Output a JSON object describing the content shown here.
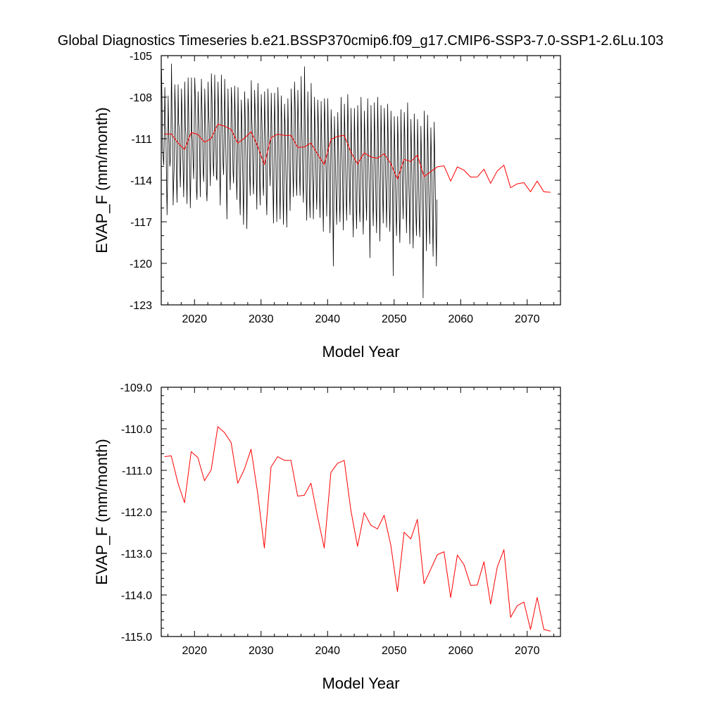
{
  "title": "Global Diagnostics Timeseries b.e21.BSSP370cmip6.f09_g17.CMIP6-SSP3-7.0-SSP1-2.6Lu.103",
  "chart_data": [
    {
      "type": "line",
      "xlabel": "Model Year",
      "ylabel": "EVAP_F (mm/month)",
      "xlim": [
        2015,
        2075
      ],
      "ylim": [
        -123,
        -105
      ],
      "x_ticks": [
        2020,
        2030,
        2040,
        2050,
        2060,
        2070
      ],
      "y_ticks": [
        -105,
        -108,
        -111,
        -114,
        -117,
        -120,
        -123
      ],
      "y_tick_labels": [
        "-105",
        "-108",
        "-111",
        "-114",
        "-117",
        "-120",
        "-123"
      ],
      "series": [
        {
          "color": "#000000",
          "x_start": 2015.04,
          "x_step": 0.0833,
          "values": [
            -106.0,
            -108.5,
            -111.8,
            -112.3,
            -112.9,
            -111.0,
            -107.3,
            -109.9,
            -110.8,
            -113.8,
            -116.5,
            -113.8,
            -107.9,
            -110.2,
            -111.5,
            -113.0,
            -112.6,
            -110.6,
            -105.6,
            -109.3,
            -110.7,
            -115.8,
            -114.1,
            -112.9,
            -107.1,
            -108.8,
            -110.7,
            -113.7,
            -115.6,
            -112.7,
            -107.1,
            -109.9,
            -110.3,
            -113.1,
            -114.5,
            -111.9,
            -107.4,
            -109.0,
            -111.7,
            -113.2,
            -115.2,
            -112.4,
            -106.9,
            -110.1,
            -110.6,
            -113.4,
            -115.7,
            -112.5,
            -106.6,
            -109.1,
            -111.8,
            -113.3,
            -116.0,
            -113.5,
            -106.6,
            -110.5,
            -111.3,
            -112.7,
            -113.9,
            -110.1,
            -106.6,
            -108.0,
            -110.4,
            -114.6,
            -115.4,
            -112.6,
            -107.6,
            -109.4,
            -110.3,
            -112.7,
            -115.2,
            -111.0,
            -106.7,
            -108.7,
            -110.2,
            -113.3,
            -114.1,
            -112.2,
            -107.4,
            -109.3,
            -110.8,
            -114.7,
            -115.5,
            -113.8,
            -106.9,
            -109.0,
            -110.0,
            -112.3,
            -114.4,
            -111.7,
            -106.3,
            -107.9,
            -110.0,
            -112.6,
            -113.7,
            -111.7,
            -106.4,
            -109.5,
            -111.1,
            -113.8,
            -114.0,
            -110.4,
            -106.9,
            -109.0,
            -110.7,
            -113.6,
            -115.8,
            -111.8,
            -106.4,
            -109.1,
            -110.6,
            -112.8,
            -113.6,
            -111.0,
            -106.7,
            -109.5,
            -111.6,
            -114.0,
            -116.8,
            -113.2,
            -107.4,
            -109.9,
            -111.2,
            -113.5,
            -114.7,
            -111.3,
            -107.3,
            -108.5,
            -110.6,
            -113.3,
            -114.2,
            -111.9,
            -107.2,
            -109.3,
            -110.7,
            -113.6,
            -115.4,
            -112.7,
            -107.3,
            -110.2,
            -112.2,
            -115.0,
            -116.5,
            -112.5,
            -108.2,
            -109.6,
            -112.5,
            -114.6,
            -117.2,
            -113.1,
            -107.6,
            -109.4,
            -111.8,
            -114.1,
            -117.5,
            -113.4,
            -108.1,
            -108.9,
            -110.7,
            -113.5,
            -115.1,
            -111.7,
            -106.8,
            -109.6,
            -110.6,
            -113.9,
            -115.0,
            -112.2,
            -107.5,
            -109.0,
            -110.5,
            -113.8,
            -116.1,
            -111.9,
            -107.0,
            -109.5,
            -111.2,
            -114.1,
            -115.8,
            -111.8,
            -107.8,
            -109.5,
            -111.0,
            -114.2,
            -115.1,
            -111.8,
            -107.6,
            -109.9,
            -111.3,
            -115.2,
            -116.5,
            -113.3,
            -107.4,
            -109.8,
            -111.3,
            -113.1,
            -114.4,
            -111.7,
            -107.7,
            -110.1,
            -112.6,
            -114.5,
            -117.1,
            -113.1,
            -107.7,
            -109.9,
            -111.7,
            -114.6,
            -117.0,
            -113.6,
            -107.3,
            -109.0,
            -112.2,
            -114.6,
            -116.8,
            -113.3,
            -107.9,
            -109.6,
            -112.4,
            -114.8,
            -117.2,
            -114.0,
            -108.5,
            -110.0,
            -112.6,
            -114.8,
            -117.4,
            -113.6,
            -108.1,
            -110.4,
            -112.0,
            -113.9,
            -116.2,
            -112.8,
            -107.4,
            -109.2,
            -111.1,
            -113.5,
            -115.2,
            -112.1,
            -106.9,
            -108.4,
            -110.7,
            -113.9,
            -115.1,
            -112.4,
            -107.5,
            -109.7,
            -111.3,
            -113.7,
            -115.1,
            -111.7,
            -106.5,
            -109.8,
            -111.6,
            -114.2,
            -115.6,
            -112.4,
            -105.8,
            -109.6,
            -111.8,
            -114.7,
            -116.9,
            -113.8,
            -107.6,
            -110.4,
            -112.3,
            -115.2,
            -116.7,
            -114.0,
            -107.0,
            -109.8,
            -113.2,
            -114.3,
            -116.8,
            -113.8,
            -108.0,
            -110.1,
            -111.8,
            -114.4,
            -116.1,
            -113.9,
            -108.2,
            -109.9,
            -112.1,
            -114.9,
            -116.7,
            -113.3,
            -108.3,
            -110.8,
            -112.5,
            -115.2,
            -117.7,
            -113.4,
            -108.1,
            -109.5,
            -112.0,
            -113.6,
            -116.6,
            -113.8,
            -108.1,
            -110.9,
            -112.8,
            -115.4,
            -117.8,
            -114.4,
            -108.9,
            -110.4,
            -112.7,
            -115.8,
            -120.2,
            -115.5,
            -109.4,
            -111.5,
            -113.1,
            -115.4,
            -117.2,
            -114.4,
            -109.1,
            -111.1,
            -112.8,
            -115.5,
            -117.0,
            -113.9,
            -108.0,
            -110.7,
            -112.6,
            -114.7,
            -117.6,
            -113.6,
            -108.5,
            -110.6,
            -112.7,
            -115.0,
            -116.9,
            -114.1,
            -107.8,
            -110.0,
            -112.1,
            -114.6,
            -116.5,
            -113.5,
            -108.8,
            -111.8,
            -113.0,
            -116.2,
            -118.1,
            -113.7,
            -108.8,
            -111.2,
            -113.3,
            -115.8,
            -117.5,
            -114.3,
            -108.6,
            -110.9,
            -112.9,
            -116.0,
            -117.0,
            -113.9,
            -108.0,
            -110.9,
            -113.6,
            -115.8,
            -117.9,
            -114.6,
            -109.0,
            -110.9,
            -112.5,
            -115.4,
            -116.9,
            -113.7,
            -108.1,
            -111.3,
            -112.9,
            -115.4,
            -119.6,
            -115.1,
            -108.6,
            -111.7,
            -113.4,
            -115.5,
            -117.3,
            -114.1,
            -108.4,
            -110.9,
            -113.3,
            -115.8,
            -117.8,
            -114.0,
            -108.0,
            -110.7,
            -113.4,
            -115.5,
            -118.4,
            -114.2,
            -108.6,
            -111.1,
            -112.8,
            -115.0,
            -117.1,
            -113.6,
            -108.8,
            -110.6,
            -113.0,
            -114.8,
            -117.4,
            -114.5,
            -108.5,
            -111.0,
            -113.7,
            -116.0,
            -117.7,
            -114.8,
            -109.0,
            -111.2,
            -113.5,
            -115.3,
            -120.9,
            -115.0,
            -109.4,
            -111.7,
            -114.0,
            -116.3,
            -118.0,
            -115.0,
            -109.4,
            -111.2,
            -113.3,
            -116.7,
            -118.5,
            -115.2,
            -108.9,
            -111.6,
            -112.8,
            -115.1,
            -116.8,
            -113.5,
            -109.1,
            -110.8,
            -113.4,
            -115.1,
            -117.8,
            -114.9,
            -108.4,
            -111.2,
            -113.9,
            -115.6,
            -118.6,
            -114.8,
            -109.6,
            -111.7,
            -114.0,
            -116.7,
            -118.9,
            -115.5,
            -109.2,
            -111.5,
            -114.1,
            -116.5,
            -118.0,
            -115.0,
            -109.6,
            -111.9,
            -114.5,
            -117.1,
            -118.1,
            -115.3,
            -110.1,
            -112.1,
            -114.3,
            -117.0,
            -122.5,
            -116.0,
            -109.0,
            -111.9,
            -114.1,
            -116.2,
            -119.1,
            -115.0,
            -109.3,
            -111.6,
            -114.5,
            -116.9,
            -118.6,
            -114.3,
            -110.2,
            -112.4,
            -114.4,
            -117.2,
            -119.5,
            -115.3,
            -109.8,
            -112.4,
            -114.8,
            -117.5,
            -120.2,
            -115.4
          ]
        },
        {
          "color": "#ff0000",
          "x_start": 2015.5,
          "x_step": 1,
          "values": [
            -110.67,
            -110.65,
            -111.3,
            -111.78,
            -110.55,
            -110.69,
            -111.25,
            -110.99,
            -109.95,
            -110.09,
            -110.33,
            -111.31,
            -110.97,
            -110.49,
            -111.56,
            -112.87,
            -110.92,
            -110.67,
            -110.76,
            -110.76,
            -111.62,
            -111.6,
            -111.31,
            -112.12,
            -112.87,
            -111.05,
            -110.83,
            -110.76,
            -111.96,
            -112.83,
            -112.02,
            -112.32,
            -112.41,
            -112.08,
            -112.8,
            -113.92,
            -112.49,
            -112.65,
            -112.18,
            -113.73,
            -113.38,
            -113.03,
            -112.96,
            -114.06,
            -113.04,
            -113.27,
            -113.77,
            -113.76,
            -113.2,
            -114.22,
            -113.33,
            -112.91,
            -114.54,
            -114.26,
            -114.17,
            -114.83,
            -114.06,
            -114.83,
            -114.87
          ]
        }
      ]
    },
    {
      "type": "line",
      "xlabel": "Model Year",
      "ylabel": "EVAP_F (mm/month)",
      "xlim": [
        2015,
        2075
      ],
      "ylim": [
        -115,
        -109
      ],
      "x_ticks": [
        2020,
        2030,
        2040,
        2050,
        2060,
        2070
      ],
      "y_ticks": [
        -109,
        -110,
        -111,
        -112,
        -113,
        -114,
        -115
      ],
      "y_tick_labels": [
        "-109.0",
        "-110.0",
        "-111.0",
        "-112.0",
        "-113.0",
        "-114.0",
        "-115.0"
      ],
      "series": [
        {
          "color": "#ff0000",
          "x_start": 2015.5,
          "x_step": 1,
          "values": [
            -110.67,
            -110.65,
            -111.3,
            -111.78,
            -110.55,
            -110.69,
            -111.25,
            -110.99,
            -109.95,
            -110.09,
            -110.33,
            -111.31,
            -110.97,
            -110.49,
            -111.56,
            -112.87,
            -110.92,
            -110.67,
            -110.76,
            -110.76,
            -111.62,
            -111.6,
            -111.31,
            -112.12,
            -112.87,
            -111.05,
            -110.83,
            -110.76,
            -111.96,
            -112.83,
            -112.02,
            -112.32,
            -112.41,
            -112.08,
            -112.8,
            -113.92,
            -112.49,
            -112.65,
            -112.18,
            -113.73,
            -113.38,
            -113.03,
            -112.96,
            -114.06,
            -113.04,
            -113.27,
            -113.77,
            -113.76,
            -113.2,
            -114.22,
            -113.33,
            -112.91,
            -114.54,
            -114.26,
            -114.17,
            -114.83,
            -114.06,
            -114.83,
            -114.87
          ]
        }
      ]
    }
  ]
}
